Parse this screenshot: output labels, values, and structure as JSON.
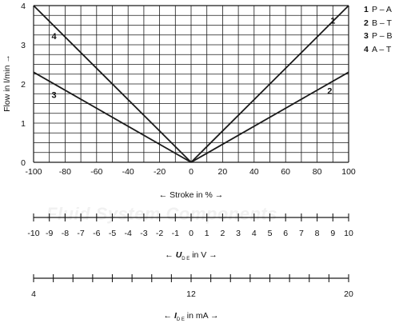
{
  "chart_data": {
    "type": "line",
    "ylabel": "Flow in l/min →",
    "xlabel": "← Stroke in % →",
    "xlim": [
      -100,
      100
    ],
    "ylim": [
      0,
      4
    ],
    "x_ticks": [
      "-100",
      "-80",
      "-60",
      "-40",
      "-20",
      "0",
      "20",
      "40",
      "60",
      "80",
      "100"
    ],
    "y_ticks": [
      "0",
      "1",
      "2",
      "3",
      "4"
    ],
    "grid": true,
    "series": [
      {
        "name": "P – A",
        "label": "1",
        "x": [
          0,
          100
        ],
        "y": [
          0,
          4.0
        ]
      },
      {
        "name": "B – T",
        "label": "2",
        "x": [
          0,
          100
        ],
        "y": [
          0,
          2.3
        ]
      },
      {
        "name": "P – B",
        "label": "3",
        "x": [
          -100,
          0
        ],
        "y": [
          2.3,
          0
        ]
      },
      {
        "name": "A – T",
        "label": "4",
        "x": [
          -100,
          0
        ],
        "y": [
          4.0,
          0
        ]
      }
    ],
    "legend": [
      {
        "num": "1",
        "text": "P – A"
      },
      {
        "num": "2",
        "text": "B – T"
      },
      {
        "num": "3",
        "text": "P – B"
      },
      {
        "num": "4",
        "text": "A – T"
      }
    ],
    "voltage_scale": {
      "ticks": [
        "-10",
        "-9",
        "-8",
        "-7",
        "-6",
        "-5",
        "-4",
        "-3",
        "-2",
        "-1",
        "0",
        "1",
        "2",
        "3",
        "4",
        "5",
        "6",
        "7",
        "8",
        "9",
        "10"
      ],
      "label_symbol": "U",
      "label_sub": "D E",
      "label_rest": " in V →",
      "label_arrow": "← "
    },
    "current_scale": {
      "ticks": [
        "4",
        "12",
        "20"
      ],
      "minor_count": 16,
      "label_symbol": "I",
      "label_sub": "D E",
      "label_rest": " in mA →",
      "label_arrow": "← "
    }
  },
  "watermark": "Fluid System Components",
  "colors": {
    "line": "#1a1a1a",
    "grid": "#1a1a1a",
    "watermark": "#f1f1f1"
  }
}
